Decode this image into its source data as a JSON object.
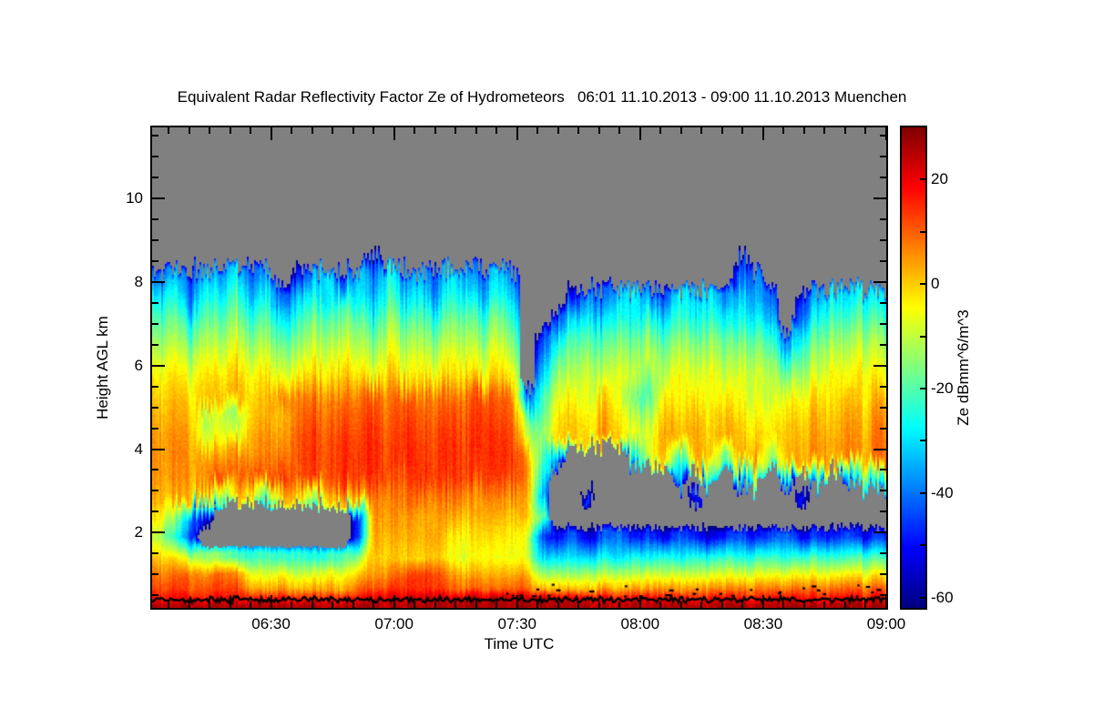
{
  "chart_data": {
    "type": "heatmap",
    "title": "Equivalent Radar Reflectivity Factor Ze of Hydrometeors   06:01 11.10.2013 - 09:00 11.10.2013 Muenchen",
    "xlabel": "Time UTC",
    "ylabel": "Height AGL km",
    "colorbar_label": "Ze dBmm^6/m^3",
    "x_range": [
      "06:01",
      "09:00"
    ],
    "x_ticks": [
      "06:30",
      "07:00",
      "07:30",
      "08:00",
      "08:30",
      "09:00"
    ],
    "x_minor_tick_minutes": 5,
    "y_range_km": [
      0.2,
      11.7
    ],
    "y_ticks_km": [
      2,
      4,
      6,
      8,
      10
    ],
    "y_minor_tick_km": 0.5,
    "value_range_db": [
      -62,
      30
    ],
    "colorbar_ticks": [
      20,
      0,
      -20,
      -40,
      -60
    ],
    "colorbar_minor_step_db": 10,
    "colormap": "jet",
    "no_data_color": "#808080",
    "surface_line": {
      "color": "#000000",
      "height_km": 0.4
    },
    "grid": {
      "n_cols": 48,
      "row_heights_km": [
        8.55,
        8.1,
        7.6,
        7.1,
        6.6,
        6.1,
        5.7,
        5.2,
        4.75,
        4.3,
        3.8,
        3.3,
        2.85,
        2.35,
        1.9,
        1.4,
        1.0,
        0.65,
        0.42,
        0.25
      ],
      "values_dbz": [
        [
          null,
          null,
          null,
          null,
          null,
          null,
          null,
          null,
          null,
          null,
          null,
          null,
          null,
          null,
          -48,
          null,
          null,
          null,
          null,
          null,
          null,
          null,
          null,
          null,
          null,
          null,
          null,
          null,
          null,
          null,
          null,
          null,
          null,
          null,
          null,
          null,
          null,
          null,
          -45,
          null,
          null,
          null,
          null,
          null,
          null,
          null,
          null,
          null
        ],
        [
          -40,
          -32,
          -45,
          -30,
          -38,
          -28,
          -42,
          -35,
          null,
          -50,
          -35,
          -28,
          -45,
          -30,
          -40,
          -25,
          -38,
          -32,
          -45,
          -28,
          -35,
          -42,
          -30,
          -38,
          null,
          null,
          null,
          null,
          null,
          null,
          null,
          null,
          null,
          null,
          null,
          null,
          null,
          null,
          -42,
          -38,
          null,
          null,
          null,
          null,
          null,
          null,
          null,
          null
        ],
        [
          -28,
          -24,
          -40,
          -22,
          -30,
          -20,
          -35,
          -26,
          -45,
          -32,
          -25,
          -30,
          -22,
          -28,
          -35,
          -20,
          -30,
          -25,
          -40,
          -22,
          -28,
          -35,
          -25,
          -30,
          null,
          null,
          null,
          -50,
          -35,
          -45,
          -30,
          -28,
          -38,
          -45,
          -25,
          -32,
          -28,
          -40,
          -30,
          -35,
          -42,
          null,
          -48,
          -35,
          -28,
          -32,
          -26,
          -30
        ],
        [
          -20,
          -17,
          -28,
          -15,
          -22,
          -14,
          -25,
          -18,
          -32,
          -24,
          -16,
          -20,
          -14,
          -18,
          -26,
          -13,
          -20,
          -16,
          -28,
          -15,
          -18,
          -24,
          -16,
          -22,
          null,
          null,
          -45,
          -30,
          -26,
          -35,
          -22,
          -28,
          -24,
          -32,
          -20,
          -26,
          -22,
          -30,
          -25,
          -28,
          -35,
          null,
          -40,
          -26,
          -20,
          -24,
          -18,
          -22
        ],
        [
          -14,
          -11,
          -18,
          -9,
          -15,
          -8,
          -17,
          -12,
          -22,
          -16,
          -10,
          -13,
          -8,
          -12,
          -18,
          -7,
          -13,
          -10,
          -19,
          -9,
          -12,
          -16,
          -10,
          -15,
          null,
          -48,
          -28,
          -20,
          -17,
          -24,
          -14,
          -19,
          -15,
          -22,
          -12,
          -17,
          -14,
          -20,
          -16,
          -18,
          -24,
          -40,
          -26,
          -18,
          -13,
          -16,
          -11,
          -14
        ],
        [
          -8,
          -5,
          -11,
          -3,
          -9,
          -2,
          -10,
          -6,
          -14,
          -9,
          -4,
          -7,
          -1,
          -6,
          -11,
          -2,
          -7,
          -4,
          -12,
          -3,
          -6,
          -9,
          -4,
          -8,
          null,
          -40,
          -18,
          -14,
          -11,
          -17,
          -8,
          -13,
          -9,
          -15,
          -6,
          -11,
          -8,
          -14,
          -10,
          -12,
          -16,
          -24,
          -18,
          -12,
          -7,
          -10,
          -5,
          -9
        ],
        [
          -4,
          -1,
          -6,
          1,
          -4,
          2,
          -5,
          -1,
          -8,
          -3,
          1,
          -2,
          3,
          0,
          -5,
          2,
          -2,
          0,
          -6,
          1,
          -1,
          -4,
          0,
          -3,
          null,
          -34,
          -12,
          -10,
          -7,
          -12,
          -4,
          -9,
          -16,
          -11,
          -3,
          -7,
          -4,
          -10,
          -6,
          -8,
          -11,
          -14,
          -12,
          -8,
          -3,
          -6,
          -2,
          -5
        ],
        [
          0,
          2,
          -2,
          3,
          0,
          4,
          -1,
          2,
          5,
          7,
          9,
          6,
          10,
          8,
          11,
          7,
          12,
          9,
          6,
          10,
          8,
          12,
          9,
          10,
          -42,
          -24,
          -6,
          -3,
          -8,
          -1,
          -5,
          -18,
          -22,
          -2,
          -4,
          -1,
          -6,
          -3,
          -5,
          -8,
          -10,
          -4,
          -6,
          0,
          -3,
          1,
          -2,
          2
        ],
        [
          2,
          4,
          1,
          -12,
          -10,
          -14,
          1,
          3,
          0,
          9,
          12,
          8,
          13,
          10,
          14,
          9,
          15,
          11,
          8,
          13,
          10,
          14,
          11,
          12,
          -18,
          -22,
          -2,
          1,
          -4,
          3,
          -1,
          -10,
          -14,
          2,
          0,
          3,
          -2,
          1,
          -1,
          -4,
          -6,
          0,
          -2,
          3,
          0,
          4,
          1,
          5
        ],
        [
          4,
          6,
          3,
          -8,
          -6,
          -9,
          3,
          6,
          2,
          11,
          14,
          10,
          15,
          12,
          16,
          11,
          16,
          13,
          10,
          15,
          12,
          15,
          13,
          14,
          -10,
          -16,
          0,
          3,
          -2,
          5,
          1,
          -6,
          -8,
          4,
          2,
          5,
          0,
          3,
          1,
          -1,
          -3,
          2,
          0,
          5,
          2,
          6,
          3,
          7
        ],
        [
          5,
          7,
          4,
          6,
          3,
          7,
          5,
          8,
          6,
          12,
          15,
          11,
          16,
          13,
          16,
          12,
          17,
          14,
          11,
          16,
          13,
          15,
          14,
          15,
          4,
          -20,
          -38,
          null,
          null,
          null,
          null,
          -30,
          -8,
          2,
          -25,
          4,
          1,
          -20,
          3,
          5,
          -15,
          2,
          2,
          6,
          3,
          7,
          4,
          8
        ],
        [
          4,
          6,
          3,
          8,
          11,
          9,
          12,
          10,
          13,
          11,
          14,
          10,
          15,
          12,
          16,
          13,
          11,
          15,
          12,
          14,
          13,
          12,
          14,
          13,
          6,
          -28,
          null,
          null,
          null,
          null,
          null,
          null,
          null,
          null,
          -35,
          null,
          -20,
          null,
          -40,
          -15,
          null,
          -35,
          null,
          -25,
          null,
          -35,
          -18,
          -28
        ],
        [
          2,
          3,
          1,
          0,
          -18,
          2,
          0,
          -22,
          1,
          3,
          -15,
          0,
          2,
          1,
          9,
          7,
          10,
          8,
          6,
          9,
          7,
          5,
          8,
          6,
          3,
          -36,
          null,
          null,
          -48,
          null,
          null,
          null,
          null,
          null,
          null,
          -45,
          null,
          null,
          null,
          null,
          null,
          null,
          -50,
          null,
          null,
          null,
          null,
          null
        ],
        [
          -4,
          -14,
          -38,
          -52,
          null,
          null,
          null,
          null,
          null,
          null,
          null,
          null,
          null,
          -48,
          7,
          5,
          6,
          3,
          2,
          4,
          1,
          3,
          2,
          1,
          0,
          -20,
          null,
          null,
          null,
          null,
          null,
          null,
          null,
          null,
          null,
          null,
          null,
          null,
          null,
          null,
          null,
          null,
          null,
          null,
          null,
          null,
          null,
          null
        ],
        [
          -12,
          -24,
          -45,
          null,
          null,
          null,
          null,
          null,
          null,
          null,
          null,
          null,
          null,
          -46,
          5,
          3,
          4,
          2,
          3,
          -2,
          -4,
          -1,
          -3,
          -2,
          -8,
          -45,
          -52,
          -40,
          -55,
          -44,
          -38,
          -50,
          -46,
          -54,
          -42,
          -47,
          -55,
          -48,
          -43,
          -50,
          -45,
          -40,
          -53,
          -46,
          -49,
          -44,
          -51,
          -47
        ],
        [
          0,
          -2,
          -10,
          -13,
          -16,
          -20,
          -23,
          -21,
          -24,
          -22,
          -25,
          -22,
          -20,
          -14,
          2,
          0,
          1,
          -1,
          0,
          -5,
          -7,
          -4,
          -6,
          -5,
          -8,
          -32,
          -30,
          -28,
          -31,
          -27,
          -29,
          -25,
          -28,
          -24,
          -27,
          -23,
          -26,
          -22,
          -25,
          -23,
          -22,
          -24,
          -23,
          -21,
          -23,
          -22,
          -20,
          -22
        ],
        [
          7,
          9,
          8,
          6,
          9,
          7,
          -6,
          -8,
          -5,
          -9,
          -7,
          -4,
          -6,
          1,
          5,
          7,
          12,
          14,
          11,
          6,
          2,
          3,
          1,
          4,
          2,
          -14,
          -12,
          -13,
          -11,
          -12,
          -10,
          -11,
          -9,
          -10,
          -8,
          -9,
          -8,
          -7,
          -8,
          -6,
          -7,
          -6,
          -5,
          -6,
          -5,
          -4,
          -5,
          -4
        ],
        [
          12,
          14,
          11,
          13,
          12,
          14,
          4,
          3,
          5,
          2,
          4,
          5,
          3,
          10,
          12,
          14,
          16,
          15,
          13,
          11,
          9,
          10,
          8,
          11,
          9,
          1,
          2,
          3,
          2,
          4,
          3,
          5,
          4,
          6,
          5,
          6,
          7,
          6,
          8,
          7,
          8,
          8,
          9,
          8,
          9,
          10,
          9,
          10
        ],
        [
          17,
          19,
          18,
          17,
          19,
          18,
          16,
          17,
          18,
          16,
          18,
          17,
          19,
          18,
          21,
          23,
          22,
          24,
          23,
          22,
          24,
          23,
          25,
          24,
          23,
          24,
          22,
          23,
          22,
          19,
          18,
          20,
          19,
          18,
          19,
          17,
          18,
          19,
          18,
          17,
          18,
          19,
          18,
          17,
          18,
          19,
          18,
          19
        ],
        [
          26,
          25,
          27,
          26,
          25,
          26,
          27,
          26,
          25,
          26,
          27,
          25,
          26,
          27,
          26,
          25,
          27,
          26,
          25,
          26,
          27,
          26,
          25,
          27,
          26,
          25,
          26,
          27,
          26,
          25,
          26,
          27,
          25,
          26,
          27,
          26,
          25,
          26,
          27,
          26,
          25,
          27,
          26,
          25,
          26,
          27,
          26,
          25
        ]
      ]
    }
  }
}
